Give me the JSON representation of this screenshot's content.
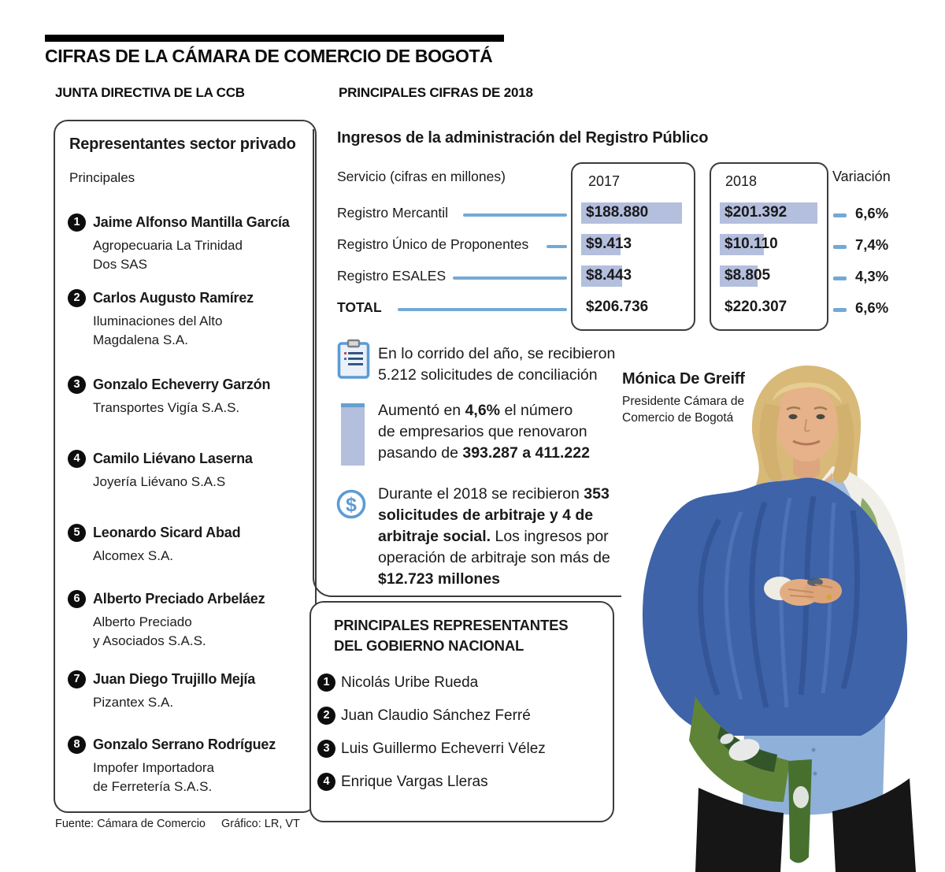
{
  "title": "CIFRAS DE LA CÁMARA DE COMERCIO DE BOGOTÁ",
  "left": {
    "header": "JUNTA DIRECTIVA DE LA CCB",
    "box_title": "Representantes sector privado",
    "box_subtitle": "Principales",
    "members": [
      {
        "n": "1",
        "name": "Jaime Alfonso Mantilla García",
        "company": "Agropecuaria La Trinidad\nDos SAS"
      },
      {
        "n": "2",
        "name": "Carlos Augusto Ramírez",
        "company": "Iluminaciones del Alto\nMagdalena S.A."
      },
      {
        "n": "3",
        "name": "Gonzalo Echeverry Garzón",
        "company": "Transportes Vigía S.A.S."
      },
      {
        "n": "4",
        "name": "Camilo Liévano Laserna",
        "company": "Joyería Liévano S.A.S"
      },
      {
        "n": "5",
        "name": "Leonardo Sicard Abad",
        "company": "Alcomex S.A."
      },
      {
        "n": "6",
        "name": "Alberto Preciado Arbeláez",
        "company": "Alberto Preciado\ny Asociados S.A.S."
      },
      {
        "n": "7",
        "name": "Juan Diego Trujillo Mejía",
        "company": "Pizantex S.A."
      },
      {
        "n": "8",
        "name": "Gonzalo Serrano Rodríguez",
        "company": "Impofer Importadora\nde Ferretería S.A.S."
      }
    ]
  },
  "right": {
    "header": "PRINCIPALES CIFRAS DE 2018",
    "section_title": "Ingresos de la administración del Registro Público",
    "table": {
      "service_label": "Servicio (cifras en millones)",
      "col_2017": "2017",
      "col_2018": "2018",
      "col_variation": "Variación",
      "rows": [
        {
          "label": "Registro Mercantil",
          "v2017": "$188.880",
          "v2018": "$201.392",
          "variation": "6,6%",
          "bar2017": 128,
          "bar2018": 124
        },
        {
          "label": "Registro Único de Proponentes",
          "v2017": "$9.413",
          "v2018": "$10.110",
          "variation": "7,4%",
          "bar2017": 50,
          "bar2018": 56
        },
        {
          "label": "Registro ESALES",
          "v2017": "$8.443",
          "v2018": "$8.805",
          "variation": "4,3%",
          "bar2017": 52,
          "bar2018": 48
        },
        {
          "label": "TOTAL",
          "v2017": "$206.736",
          "v2018": "$220.307",
          "variation": "6,6%",
          "bar2017": 0,
          "bar2018": 0
        }
      ]
    },
    "notes": [
      {
        "icon": "clipboard-icon",
        "segments": [
          {
            "t": "En lo corrido del año, se recibieron\n5.212 solicitudes de conciliación",
            "b": false
          }
        ]
      },
      {
        "icon": "bar-chart-icon",
        "segments": [
          {
            "t": "Aumentó en ",
            "b": false
          },
          {
            "t": "4,6%",
            "b": true
          },
          {
            "t": " el número\nde empresarios que renovaron\npasando de ",
            "b": false
          },
          {
            "t": "393.287 a 411.222",
            "b": true
          }
        ]
      },
      {
        "icon": "dollar-icon",
        "segments": [
          {
            "t": "Durante el 2018 se recibieron ",
            "b": false
          },
          {
            "t": "353\nsolicitudes de arbitraje y 4 de\narbitraje social.",
            "b": true
          },
          {
            "t": " Los ingresos por\noperación de arbitraje son más de\n",
            "b": false
          },
          {
            "t": "$12.723 millones",
            "b": true
          }
        ]
      }
    ]
  },
  "government": {
    "title": "PRINCIPALES REPRESENTANTES\nDEL GOBIERNO NACIONAL",
    "members": [
      {
        "n": "1",
        "name": "Nicolás Uribe Rueda"
      },
      {
        "n": "2",
        "name": "Juan Claudio Sánchez Ferré"
      },
      {
        "n": "3",
        "name": "Luis Guillermo Echeverri Vélez"
      },
      {
        "n": "4",
        "name": "Enrique Vargas Lleras"
      }
    ]
  },
  "photo_caption": {
    "name": "Mónica De Greiff",
    "role": "Presidente Cámara de\nComercio de Bogotá"
  },
  "footer": {
    "source": "Fuente: Cámara de Comercio",
    "credit": "Gráfico: LR, VT"
  },
  "colors": {
    "accent_blue_line": "#74a9d4",
    "value_bar_fill": "#b4bedd",
    "icon_blue": "#5b9bd5",
    "text_black": "#1a1a1a"
  },
  "chart_data": {
    "type": "table",
    "title": "Ingresos de la administración del Registro Público",
    "units": "cifras en millones",
    "columns": [
      "Servicio (cifras en millones)",
      "2017",
      "2018",
      "Variación"
    ],
    "rows": [
      [
        "Registro Mercantil",
        "$188.880",
        "$201.392",
        "6,6%"
      ],
      [
        "Registro Único de Proponentes",
        "$9.413",
        "$10.110",
        "7,4%"
      ],
      [
        "Registro ESALES",
        "$8.443",
        "$8.805",
        "4,3%"
      ],
      [
        "TOTAL",
        "$206.736",
        "$220.307",
        "6,6%"
      ]
    ],
    "highlights": [
      {
        "value": "5.212",
        "text": "solicitudes de conciliación recibidas en lo corrido del año"
      },
      {
        "value": "4,6%",
        "text": "aumento de empresarios que renovaron, pasando de 393.287 a 411.222"
      },
      {
        "value": "353",
        "text": "solicitudes de arbitraje y 4 de arbitraje social; ingresos por operación de arbitraje de más de $12.723 millones"
      }
    ]
  }
}
